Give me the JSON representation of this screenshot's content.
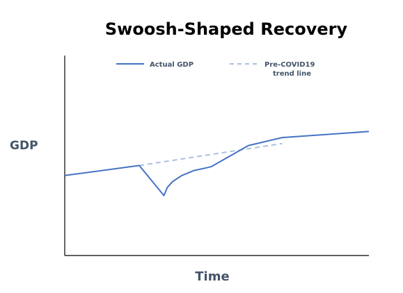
{
  "chart_data": {
    "type": "line",
    "title": "Swoosh-Shaped Recovery",
    "xlabel": "Time",
    "ylabel": "GDP",
    "grid": false,
    "legend_placement": "top",
    "ticks_shown": false,
    "series": [
      {
        "name": "Actual GDP",
        "style": "solid",
        "color": "#4472c4",
        "points": [
          [
            0.0,
            0.4
          ],
          [
            24.5,
            0.45
          ],
          [
            32.6,
            0.3
          ],
          [
            33.7,
            0.34
          ],
          [
            35.5,
            0.37
          ],
          [
            38.5,
            0.4
          ],
          [
            42.5,
            0.425
          ],
          [
            47.0,
            0.44
          ],
          [
            48.3,
            0.445
          ],
          [
            60.4,
            0.55
          ],
          [
            71.5,
            0.59
          ],
          [
            100.0,
            0.62
          ]
        ]
      },
      {
        "name": "Pre-COVID19 trend line",
        "legend_lines": [
          "Pre-COVID19",
          "trend line"
        ],
        "style": "dashed",
        "color": "#a9bfe0",
        "points": [
          [
            24.5,
            0.45
          ],
          [
            71.5,
            0.56
          ]
        ]
      }
    ]
  }
}
